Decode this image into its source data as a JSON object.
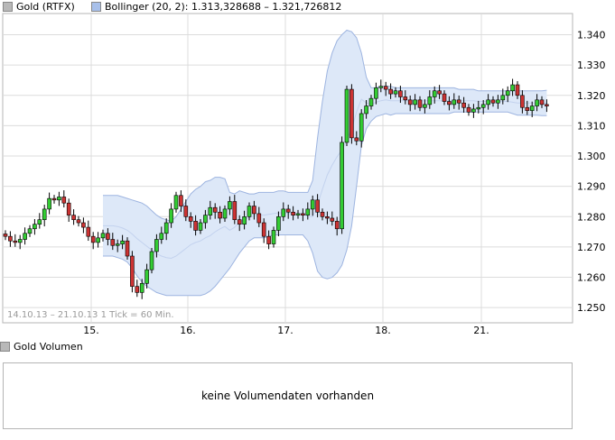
{
  "legend": {
    "series_label": "Gold (RTFX)",
    "bollinger_label": "Bollinger (20, 2): 1.313,328688 – 1.321,726812"
  },
  "colors": {
    "up": "#33cc33",
    "down": "#cc3333",
    "band_fill": "#dde8f8",
    "band_stroke": "#9db4e0",
    "grid": "#dcdcdc",
    "legend_series_swatch": "#b8b8b8",
    "legend_band_swatch": "#a8c0ea"
  },
  "date_range_label": "14.10.13 – 21.10.13",
  "interval_label": "1 Tick = 60 Min.",
  "volume": {
    "legend_label": "Gold Volumen",
    "empty_message": "keine Volumendaten vorhanden"
  },
  "chart_data": {
    "type": "candlestick",
    "series_name": "Gold (RTFX)",
    "x_tick_labels": [
      "15.",
      "16.",
      "17.",
      "18.",
      "21."
    ],
    "y_tick_labels": [
      "1.250",
      "1.260",
      "1.270",
      "1.280",
      "1.290",
      "1.300",
      "1.310",
      "1.320",
      "1.330",
      "1.340"
    ],
    "y_ticks": [
      1250,
      1260,
      1270,
      1280,
      1290,
      1300,
      1310,
      1320,
      1330,
      1340
    ],
    "ylim": [
      1245,
      1347
    ],
    "closes": [
      1273.5,
      1272.0,
      1271.5,
      1272.5,
      1274.5,
      1276.0,
      1277.5,
      1279.0,
      1282.5,
      1286.0,
      1285.5,
      1286.5,
      1284.5,
      1280.5,
      1279.0,
      1278.0,
      1276.5,
      1273.5,
      1271.5,
      1273.0,
      1274.5,
      1272.5,
      1270.5,
      1271.0,
      1272.0,
      1267.0,
      1257.0,
      1255.0,
      1258.0,
      1262.5,
      1268.5,
      1272.5,
      1274.5,
      1278.0,
      1282.5,
      1287.0,
      1283.5,
      1280.0,
      1278.5,
      1275.5,
      1278.0,
      1280.5,
      1283.0,
      1281.5,
      1279.5,
      1282.5,
      1285.0,
      1279.0,
      1277.5,
      1280.0,
      1283.5,
      1281.0,
      1278.0,
      1273.5,
      1271.0,
      1275.5,
      1280.0,
      1282.5,
      1281.5,
      1280.5,
      1281.0,
      1280.5,
      1282.5,
      1285.5,
      1281.5,
      1280.0,
      1279.5,
      1278.5,
      1276.0,
      1304.5,
      1322.0,
      1306.0,
      1305.0,
      1314.0,
      1316.5,
      1319.0,
      1322.5,
      1323.0,
      1322.0,
      1320.5,
      1321.5,
      1319.5,
      1318.5,
      1317.0,
      1318.5,
      1316.0,
      1317.0,
      1319.5,
      1321.5,
      1320.5,
      1318.0,
      1317.0,
      1318.5,
      1317.5,
      1316.0,
      1314.5,
      1315.5,
      1316.0,
      1317.0,
      1318.5,
      1317.5,
      1318.5,
      1320.0,
      1321.5,
      1323.5,
      1320.0,
      1316.0,
      1315.0,
      1316.5,
      1318.5,
      1317.0,
      1316.5
    ],
    "bollinger_bands": {
      "label": "Bollinger (20, 2)",
      "start_index": 20,
      "upper": [
        1287.0,
        1287.0,
        1287.0,
        1287.0,
        1286.5,
        1286.0,
        1285.5,
        1285.0,
        1284.5,
        1283.5,
        1282.0,
        1280.5,
        1279.5,
        1279.0,
        1278.5,
        1280.0,
        1282.5,
        1285.0,
        1287.5,
        1289.0,
        1290.0,
        1291.5,
        1292.0,
        1293.0,
        1293.0,
        1292.5,
        1288.0,
        1287.5,
        1288.5,
        1288.0,
        1287.5,
        1287.5,
        1288.0,
        1288.0,
        1288.0,
        1288.0,
        1288.5,
        1288.5,
        1288.0,
        1288.0,
        1288.0,
        1288.0,
        1288.0,
        1292.0,
        1306.0,
        1318.0,
        1328.0,
        1334.0,
        1338.0,
        1340.0,
        1341.5,
        1341.0,
        1339.0,
        1334.0,
        1326.0,
        1322.5,
        1322.5,
        1323.0,
        1323.0,
        1323.0,
        1322.5,
        1322.5,
        1322.5,
        1322.5,
        1322.5,
        1322.5,
        1322.5,
        1322.5,
        1322.5,
        1322.5,
        1322.5,
        1322.5,
        1322.5,
        1322.0,
        1322.0,
        1322.0,
        1322.0,
        1321.5,
        1321.5,
        1321.5,
        1321.5,
        1321.5,
        1321.5,
        1321.5,
        1321.5,
        1321.5,
        1321.5,
        1321.5,
        1321.5,
        1321.5,
        1321.5,
        1321.7
      ],
      "lower": [
        1267.0,
        1267.0,
        1267.0,
        1266.5,
        1266.0,
        1265.0,
        1263.0,
        1260.5,
        1258.5,
        1257.0,
        1256.0,
        1255.0,
        1254.5,
        1254.0,
        1254.0,
        1254.0,
        1254.0,
        1254.0,
        1254.0,
        1254.0,
        1254.0,
        1254.5,
        1255.5,
        1257.0,
        1259.0,
        1261.0,
        1263.0,
        1265.5,
        1268.0,
        1270.0,
        1272.0,
        1273.0,
        1273.0,
        1273.0,
        1273.5,
        1274.0,
        1274.0,
        1274.0,
        1274.0,
        1274.0,
        1274.0,
        1274.0,
        1272.0,
        1268.0,
        1262.0,
        1260.0,
        1259.5,
        1260.0,
        1261.5,
        1264.0,
        1269.0,
        1277.0,
        1290.0,
        1303.5,
        1309.0,
        1311.5,
        1313.0,
        1313.5,
        1314.0,
        1313.5,
        1314.0,
        1314.0,
        1314.0,
        1314.0,
        1314.0,
        1314.0,
        1314.0,
        1314.0,
        1314.0,
        1314.0,
        1314.0,
        1314.0,
        1314.5,
        1314.5,
        1314.5,
        1314.5,
        1314.5,
        1314.5,
        1314.5,
        1314.5,
        1314.5,
        1314.5,
        1314.5,
        1314.5,
        1314.0,
        1313.5,
        1313.5,
        1313.5,
        1313.5,
        1313.5,
        1313.3,
        1313.3
      ]
    }
  }
}
